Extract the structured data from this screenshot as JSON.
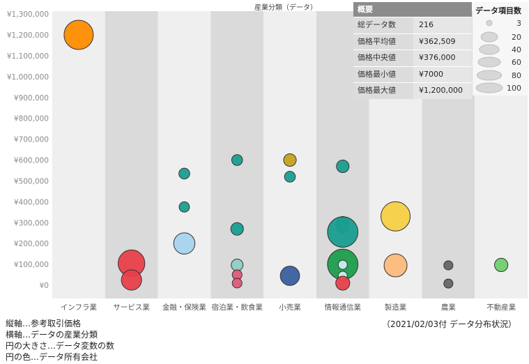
{
  "chart_data": {
    "type": "scatter",
    "title": "産業分類（データ）",
    "categories": [
      "インフラ業",
      "サービス業",
      "金融・保険業",
      "宿泊業・飲食業",
      "小売業",
      "情報通信業",
      "製造業",
      "農業",
      "不動産業"
    ],
    "y_ticks": [
      "¥0",
      "¥100,000",
      "¥200,000",
      "¥300,000",
      "¥400,000",
      "¥500,000",
      "¥600,000",
      "¥700,000",
      "¥800,000",
      "¥900,000",
      "¥1,000,000",
      "¥1,100,000",
      "¥1,200,000",
      "¥1,300,000"
    ],
    "ylim": [
      0,
      1300000
    ],
    "points": [
      {
        "cat": 0,
        "y": 1200000,
        "size": 100,
        "color": "#ff8c00"
      },
      {
        "cat": 1,
        "y": 105000,
        "size": 80,
        "color": "#e8404a"
      },
      {
        "cat": 1,
        "y": 25000,
        "size": 40,
        "color": "#e8404a"
      },
      {
        "cat": 2,
        "y": 535000,
        "size": 6,
        "color": "#1a9e91"
      },
      {
        "cat": 2,
        "y": 375000,
        "size": 5,
        "color": "#1a9e91"
      },
      {
        "cat": 2,
        "y": 200000,
        "size": 45,
        "color": "#a6d2ee"
      },
      {
        "cat": 3,
        "y": 600000,
        "size": 6,
        "color": "#1a9e91"
      },
      {
        "cat": 3,
        "y": 270000,
        "size": 10,
        "color": "#1a9e91"
      },
      {
        "cat": 3,
        "y": 97000,
        "size": 8,
        "color": "#8fcfc6"
      },
      {
        "cat": 3,
        "y": 50000,
        "size": 4,
        "color": "#e05a7a"
      },
      {
        "cat": 3,
        "y": 10000,
        "size": 4,
        "color": "#e05a7a"
      },
      {
        "cat": 4,
        "y": 600000,
        "size": 10,
        "color": "#c4a21d"
      },
      {
        "cat": 4,
        "y": 520000,
        "size": 6,
        "color": "#1a9e91"
      },
      {
        "cat": 4,
        "y": 45000,
        "size": 35,
        "color": "#3a5ea0"
      },
      {
        "cat": 5,
        "y": 570000,
        "size": 10,
        "color": "#1a9e91"
      },
      {
        "cat": 5,
        "y": 300000,
        "size": 9,
        "color": "#1a9e91"
      },
      {
        "cat": 5,
        "y": 280000,
        "size": 9,
        "color": "#1a9e91"
      },
      {
        "cat": 5,
        "y": 255000,
        "size": 110,
        "color": "#1a9e91"
      },
      {
        "cat": 5,
        "y": 100000,
        "size": 110,
        "color": "#1e9e4c"
      },
      {
        "cat": 5,
        "y": 98000,
        "size": 3,
        "color": "#c7f0ee"
      },
      {
        "cat": 5,
        "y": 45000,
        "size": 3,
        "color": "#c7f0ee"
      },
      {
        "cat": 5,
        "y": 10000,
        "size": 14,
        "color": "#e8404a"
      },
      {
        "cat": 6,
        "y": 330000,
        "size": 100,
        "color": "#f5cf45"
      },
      {
        "cat": 6,
        "y": 95000,
        "size": 55,
        "color": "#fbb97a"
      },
      {
        "cat": 7,
        "y": 95000,
        "size": 3,
        "color": "#666666"
      },
      {
        "cat": 7,
        "y": 8000,
        "size": 3,
        "color": "#666666"
      },
      {
        "cat": 8,
        "y": 97000,
        "size": 12,
        "color": "#6dd06d"
      }
    ]
  },
  "summary": {
    "header": "概要",
    "rows": [
      {
        "label": "総データ数",
        "value": "216"
      },
      {
        "label": "価格平均値",
        "value": "¥362,509"
      },
      {
        "label": "価格中央値",
        "value": "¥376,000"
      },
      {
        "label": "価格最小値",
        "value": "¥7000"
      },
      {
        "label": "価格最大値",
        "value": "¥1,200,000"
      }
    ]
  },
  "legend": {
    "title": "データ項目数",
    "items": [
      {
        "label": "3",
        "size": 3
      },
      {
        "label": "20",
        "size": 20
      },
      {
        "label": "40",
        "size": 40
      },
      {
        "label": "60",
        "size": 60
      },
      {
        "label": "80",
        "size": 80
      },
      {
        "label": "100",
        "size": 100
      }
    ]
  },
  "notes": {
    "line1": "縦軸…参考取引価格",
    "line2": "横軸…データの産業分類",
    "line3": "円の大きさ…データ変数の数",
    "line4": "円の色…データ所有会社",
    "date": "（2021/02/03付 データ分布状況）"
  }
}
